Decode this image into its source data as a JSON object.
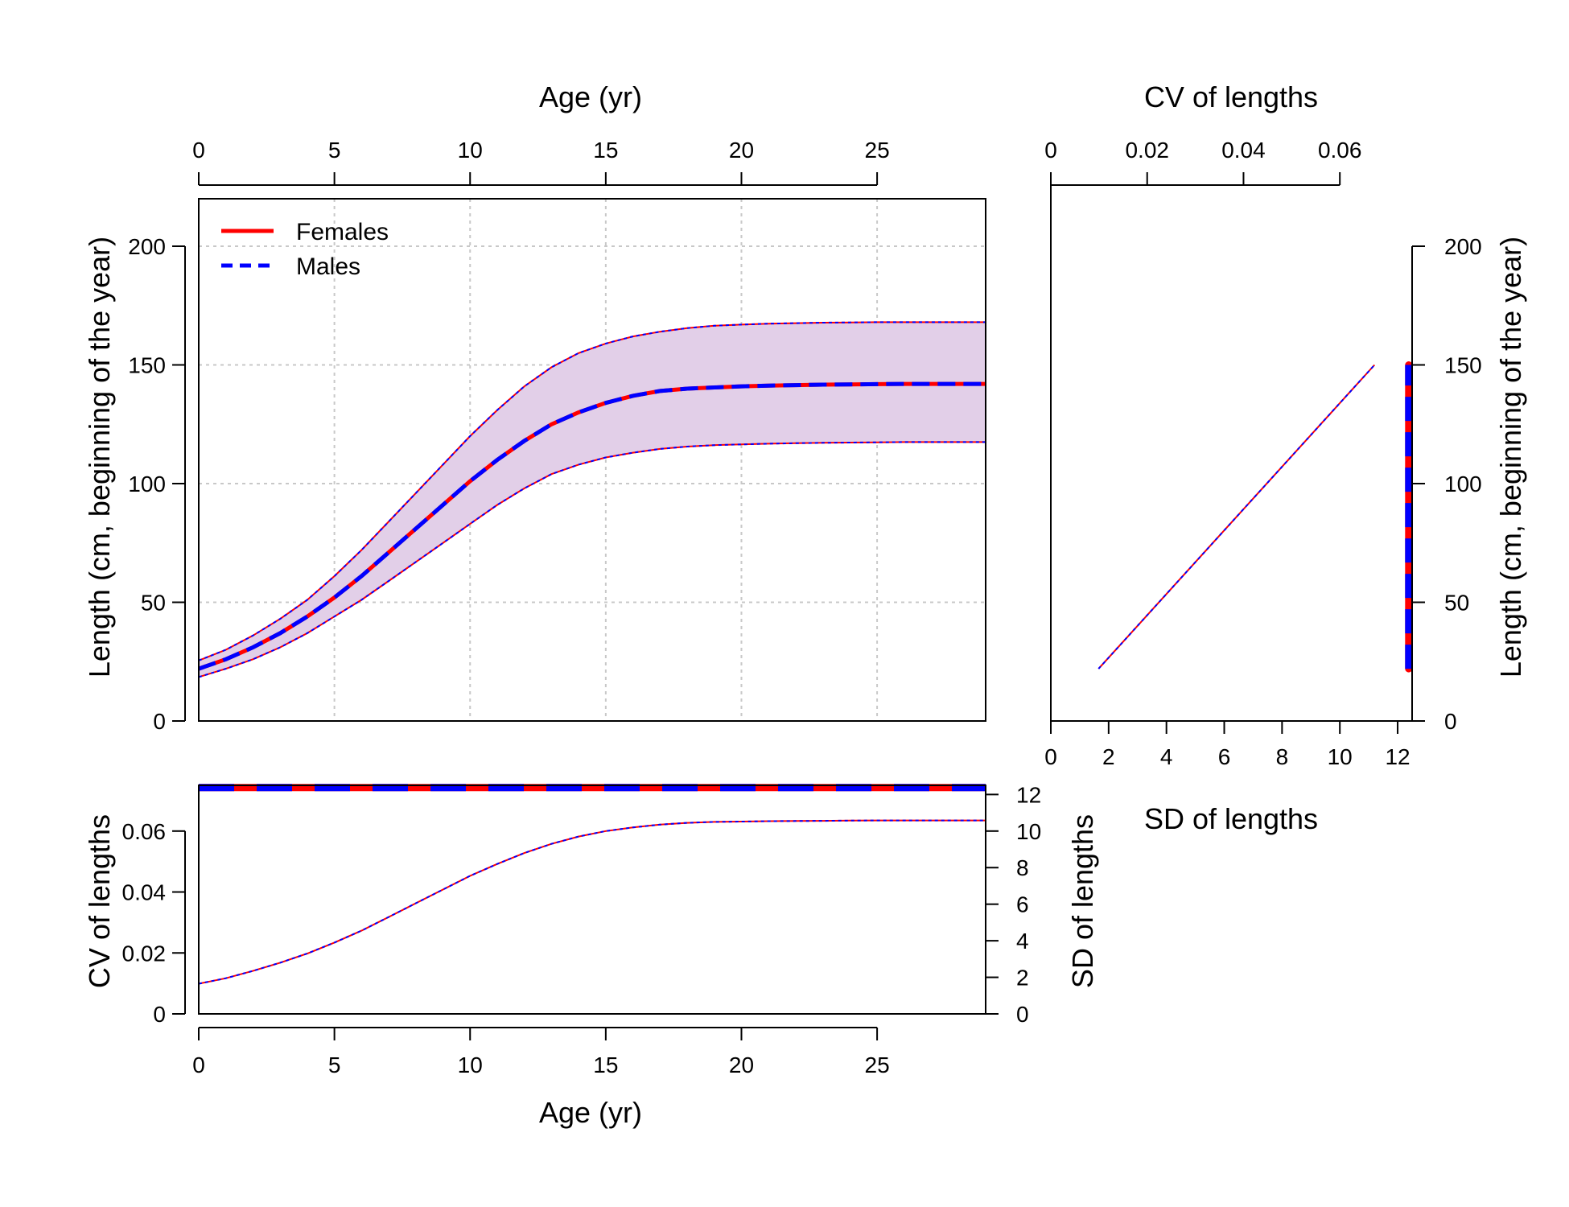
{
  "chart_data": [
    {
      "type": "line",
      "panel": "growth",
      "xlabel": "Age (yr)",
      "ylabel": "Length (cm, beginning of the year)",
      "xlim": [
        0,
        29
      ],
      "ylim": [
        0,
        220
      ],
      "xticks": [
        0,
        5,
        10,
        15,
        20,
        25
      ],
      "yticks": [
        0,
        50,
        100,
        150,
        200
      ],
      "grid": true,
      "legend": {
        "position": "top-left",
        "entries": [
          "Females",
          "Males"
        ]
      },
      "x": [
        0,
        1,
        2,
        3,
        4,
        5,
        6,
        7,
        8,
        9,
        10,
        11,
        12,
        13,
        14,
        15,
        16,
        17,
        18,
        19,
        20,
        21,
        22,
        23,
        24,
        25,
        26,
        27,
        28,
        29
      ],
      "series": [
        {
          "name": "Females",
          "color": "#ff0000",
          "style": "solid",
          "values": [
            22,
            26,
            31,
            37,
            44,
            52,
            61,
            71,
            81,
            91,
            101,
            110,
            118,
            125,
            130,
            134,
            137,
            139,
            140,
            140.5,
            141,
            141.3,
            141.5,
            141.7,
            141.8,
            141.9,
            142,
            142,
            142,
            142
          ]
        },
        {
          "name": "Males",
          "color": "#0000ff",
          "style": "dashed",
          "values": [
            22,
            26,
            31,
            37,
            44,
            52,
            61,
            71,
            81,
            91,
            101,
            110,
            118,
            125,
            130,
            134,
            137,
            139,
            140,
            140.5,
            141,
            141.3,
            141.5,
            141.7,
            141.8,
            141.9,
            142,
            142,
            142,
            142
          ]
        }
      ],
      "interval": {
        "fill": "#e2cfe8",
        "upper": [
          25.5,
          30,
          36,
          43,
          51,
          61,
          72,
          84,
          96,
          108,
          120,
          131,
          141,
          149,
          155,
          159,
          162,
          164,
          165.5,
          166.5,
          167,
          167.4,
          167.6,
          167.8,
          167.9,
          168,
          168,
          168,
          168,
          168
        ],
        "lower": [
          18.5,
          22,
          26,
          31,
          37,
          44,
          51,
          59,
          67,
          75,
          83,
          91,
          98,
          104,
          108,
          111,
          113,
          114.6,
          115.6,
          116.2,
          116.5,
          116.8,
          117,
          117.2,
          117.3,
          117.4,
          117.5,
          117.5,
          117.5,
          117.5
        ]
      }
    },
    {
      "type": "line",
      "panel": "sd-cv",
      "xlabel": "SD of lengths",
      "x2label": "CV of lengths",
      "ylabel": "Length (cm, beginning of the year)",
      "xlim": [
        0,
        12.5
      ],
      "x2lim": [
        0,
        0.075
      ],
      "ylim": [
        0,
        220
      ],
      "xticks": [
        0,
        2,
        4,
        6,
        8,
        10,
        12
      ],
      "x2ticks": [
        0,
        0.02,
        0.04,
        0.06
      ],
      "x2ticklabels": [
        "0",
        "0.02",
        "0.04",
        "0.06"
      ],
      "yticks": [
        0,
        50,
        100,
        150,
        200
      ],
      "series": [
        {
          "name": "SD",
          "values_x": [
            1.65,
            11.2
          ],
          "values_y": [
            22,
            150
          ]
        },
        {
          "name": "CV",
          "values_x": [
            0.0743,
            0.0743
          ],
          "values_y": [
            22,
            150
          ]
        }
      ]
    },
    {
      "type": "line",
      "panel": "cv-sd-by-age",
      "xlabel": "Age (yr)",
      "ylabel": "CV of lengths",
      "y2label": "SD of lengths",
      "xlim": [
        0,
        29
      ],
      "ylim": [
        0,
        0.075
      ],
      "y2lim": [
        0,
        12.5
      ],
      "xticks": [
        0,
        5,
        10,
        15,
        20,
        25
      ],
      "yticks": [
        0,
        0.02,
        0.04,
        0.06
      ],
      "yticklabels": [
        "0",
        "0.02",
        "0.04",
        "0.06"
      ],
      "y2ticks": [
        0,
        2,
        4,
        6,
        8,
        10,
        12
      ],
      "x": [
        0,
        1,
        2,
        3,
        4,
        5,
        6,
        7,
        8,
        9,
        10,
        11,
        12,
        13,
        14,
        15,
        16,
        17,
        18,
        19,
        20,
        21,
        22,
        23,
        24,
        25,
        26,
        27,
        28,
        29
      ],
      "cv": [
        0.0743,
        0.0743,
        0.0743,
        0.0743,
        0.0743,
        0.0743,
        0.0743,
        0.0743,
        0.0743,
        0.0743,
        0.0743,
        0.0743,
        0.0743,
        0.0743,
        0.0743,
        0.0743,
        0.0743,
        0.0743,
        0.0743,
        0.0743,
        0.0743,
        0.0743,
        0.0743,
        0.0743,
        0.0743,
        0.0743,
        0.0743,
        0.0743,
        0.0743,
        0.0743
      ],
      "sd": [
        1.65,
        1.95,
        2.35,
        2.8,
        3.3,
        3.9,
        4.55,
        5.3,
        6.05,
        6.8,
        7.55,
        8.2,
        8.8,
        9.3,
        9.7,
        10.0,
        10.2,
        10.35,
        10.45,
        10.5,
        10.52,
        10.54,
        10.55,
        10.56,
        10.57,
        10.58,
        10.58,
        10.58,
        10.58,
        10.58
      ]
    }
  ],
  "colors": {
    "female": "#ff0000",
    "male": "#0000ff",
    "band": "#e2cfe8",
    "grid": "#c8c8c8"
  }
}
